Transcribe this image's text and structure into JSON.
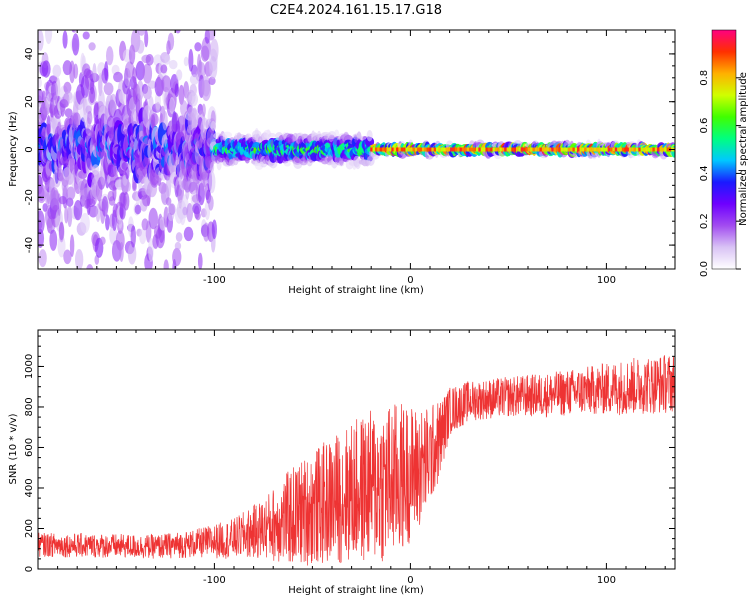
{
  "figure": {
    "title": "C2E4.2024.161.15.17.G18"
  },
  "chart_data": [
    {
      "type": "heatmap",
      "xlabel": "Height of straight line (km)",
      "ylabel": "Frequency (Hz)",
      "xlim": [
        -190,
        135
      ],
      "ylim": [
        -50,
        50
      ],
      "x_ticks": [
        -100,
        0,
        100
      ],
      "y_ticks": [
        -40,
        -20,
        0,
        20,
        40
      ],
      "colorbar": {
        "label": "Normalized spectral amplitude",
        "range": [
          0.0,
          1.0
        ],
        "ticks": [
          0.0,
          0.2,
          0.4,
          0.6,
          0.8
        ],
        "colors": [
          "#ffffff",
          "#d9c3f5",
          "#a24cf0",
          "#6e00ff",
          "#1a1aff",
          "#00c8ff",
          "#00ff80",
          "#40ff00",
          "#d0ff00",
          "#ffb000",
          "#ff3000",
          "#ff0080"
        ]
      },
      "description_series": [
        {
          "x": [
            -190,
            -100
          ],
          "center_hz": 0,
          "spread_hz": 50,
          "peak_amplitude": 0.4
        },
        {
          "x": [
            -100,
            -20
          ],
          "center_hz": 0,
          "spread_hz": 10,
          "peak_amplitude": 0.6
        },
        {
          "x": [
            -20,
            135
          ],
          "center_hz": 0,
          "spread_hz": 3,
          "peak_amplitude": 0.9
        }
      ]
    },
    {
      "type": "line",
      "xlabel": "Height of straight line (km)",
      "ylabel": "SNR (10 * v/v)",
      "xlim": [
        -190,
        135
      ],
      "ylim": [
        0,
        1180
      ],
      "x_ticks": [
        -100,
        0,
        100
      ],
      "y_ticks": [
        0,
        200,
        400,
        600,
        800,
        1000
      ],
      "series": [
        {
          "color": "#ee3333",
          "x": [
            -190,
            -160,
            -130,
            -110,
            -90,
            -75,
            -60,
            -45,
            -30,
            -15,
            -5,
            5,
            10,
            15,
            20,
            30,
            50,
            70,
            90,
            110,
            135
          ],
          "mean": [
            120,
            115,
            110,
            125,
            150,
            200,
            260,
            320,
            380,
            420,
            450,
            500,
            560,
            640,
            780,
            830,
            850,
            860,
            880,
            900,
            920
          ],
          "amplitude": [
            60,
            60,
            60,
            70,
            100,
            150,
            250,
            300,
            350,
            400,
            380,
            300,
            250,
            200,
            120,
            100,
            100,
            110,
            120,
            140,
            150
          ]
        }
      ]
    }
  ]
}
